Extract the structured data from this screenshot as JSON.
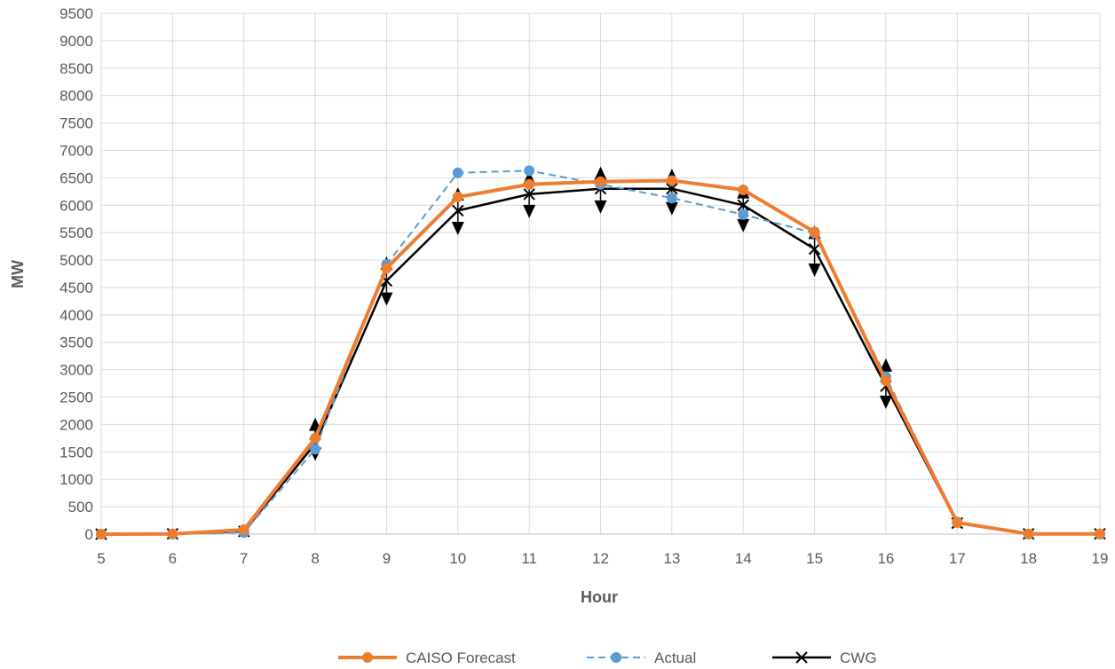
{
  "chart_data": {
    "type": "line",
    "title": "",
    "xlabel": "Hour",
    "ylabel": "MW",
    "x": [
      5,
      6,
      7,
      8,
      9,
      10,
      11,
      12,
      13,
      14,
      15,
      16,
      17,
      18,
      19
    ],
    "xlim": [
      5,
      19
    ],
    "ylim": [
      0,
      9500
    ],
    "ytick_step": 500,
    "grid": true,
    "legend_position": "bottom",
    "series": [
      {
        "name": "CAISO Forecast",
        "style": "solid-thick",
        "marker": "circle",
        "color": "#ED7D31",
        "values": [
          0,
          5,
          80,
          1750,
          4850,
          6150,
          6380,
          6430,
          6450,
          6280,
          5510,
          2800,
          210,
          5,
          5
        ]
      },
      {
        "name": "Actual",
        "style": "dashed",
        "marker": "circle",
        "color": "#5B9BD5",
        "values": [
          0,
          0,
          30,
          1550,
          4920,
          6590,
          6630,
          6380,
          6130,
          5830,
          5490,
          2870,
          220,
          0,
          0
        ]
      },
      {
        "name": "CWG",
        "style": "solid",
        "marker": "x",
        "color": "#000000",
        "values": [
          0,
          5,
          50,
          1650,
          4620,
          5900,
          6200,
          6300,
          6300,
          6000,
          5200,
          2700,
          200,
          5,
          5
        ],
        "error_upper": [
          0,
          0,
          0,
          1980,
          4920,
          6180,
          6480,
          6560,
          6520,
          6220,
          5480,
          3060,
          0,
          0,
          0
        ],
        "error_lower": [
          0,
          0,
          0,
          1480,
          4310,
          5600,
          5910,
          5990,
          5960,
          5650,
          4840,
          2430,
          0,
          0,
          0
        ]
      }
    ]
  }
}
